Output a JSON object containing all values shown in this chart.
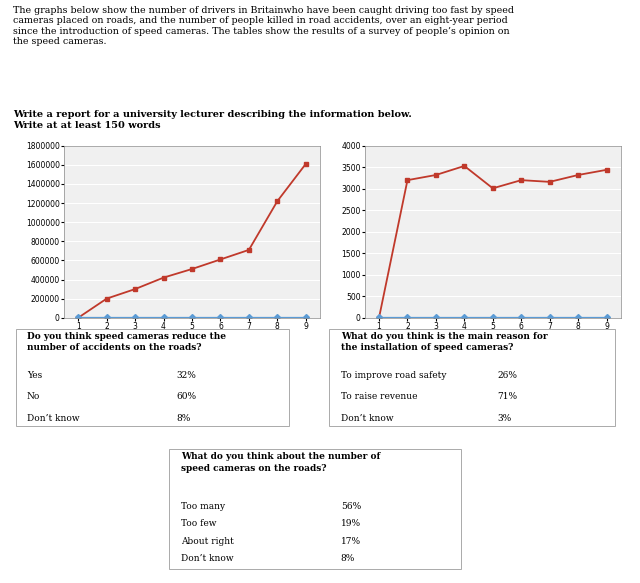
{
  "title_text": "The graphs below show the number of drivers in Britainwho have been caught driving too fast by speed\ncameras placed on roads, and the number of people killed in road accidents, over an eight-year period\nsince the introduction of speed cameras. The tables show the results of a survey of people’s opinion on\nthe speed cameras.",
  "subtitle_text": "Write a report for a university lecturer describing the information below.\nWrite at at least 150 words",
  "chart1": {
    "x": [
      1,
      2,
      3,
      4,
      5,
      6,
      7,
      8,
      9
    ],
    "red_y": [
      0,
      200000,
      300000,
      420000,
      510000,
      610000,
      710000,
      1220000,
      1610000
    ],
    "blue_y": [
      5000,
      5000,
      5000,
      5000,
      5000,
      5000,
      5000,
      5000,
      5000
    ],
    "ylim": [
      0,
      1800000
    ],
    "yticks": [
      0,
      200000,
      400000,
      600000,
      800000,
      1000000,
      1200000,
      1400000,
      1600000,
      1800000
    ],
    "xticks": [
      1,
      2,
      3,
      4,
      5,
      6,
      7,
      8,
      9
    ]
  },
  "chart2": {
    "x": [
      1,
      2,
      3,
      4,
      5,
      6,
      7,
      8,
      9
    ],
    "red_y": [
      0,
      3200,
      3320,
      3530,
      3010,
      3200,
      3160,
      3320,
      3440
    ],
    "blue_y": [
      10,
      10,
      10,
      10,
      10,
      10,
      10,
      10,
      10
    ],
    "ylim": [
      0,
      4000
    ],
    "yticks": [
      0,
      500,
      1000,
      1500,
      2000,
      2500,
      3000,
      3500,
      4000
    ],
    "xticks": [
      1,
      2,
      3,
      4,
      5,
      6,
      7,
      8,
      9
    ]
  },
  "table1": {
    "question": "Do you think speed cameras reduce the\nnumber of accidents on the roads?",
    "rows": [
      [
        "Yes",
        "32%"
      ],
      [
        "No",
        "60%"
      ],
      [
        "Don’t know",
        "8%"
      ]
    ]
  },
  "table2": {
    "question": "What do you think is the main reason for\nthe installation of speed cameras?",
    "rows": [
      [
        "To improve road safety",
        "26%"
      ],
      [
        "To raise revenue",
        "71%"
      ],
      [
        "Don’t know",
        "3%"
      ]
    ]
  },
  "table3": {
    "question": "What do you think about the number of\nspeed cameras on the roads?",
    "rows": [
      [
        "Too many",
        "56%"
      ],
      [
        "Too few",
        "19%"
      ],
      [
        "About right",
        "17%"
      ],
      [
        "Don’t know",
        "8%"
      ]
    ]
  },
  "red_color": "#c0392b",
  "blue_color": "#5b9bd5",
  "bg_color": "#ffffff",
  "chart_bg": "#f0f0f0",
  "grid_color": "#ffffff"
}
